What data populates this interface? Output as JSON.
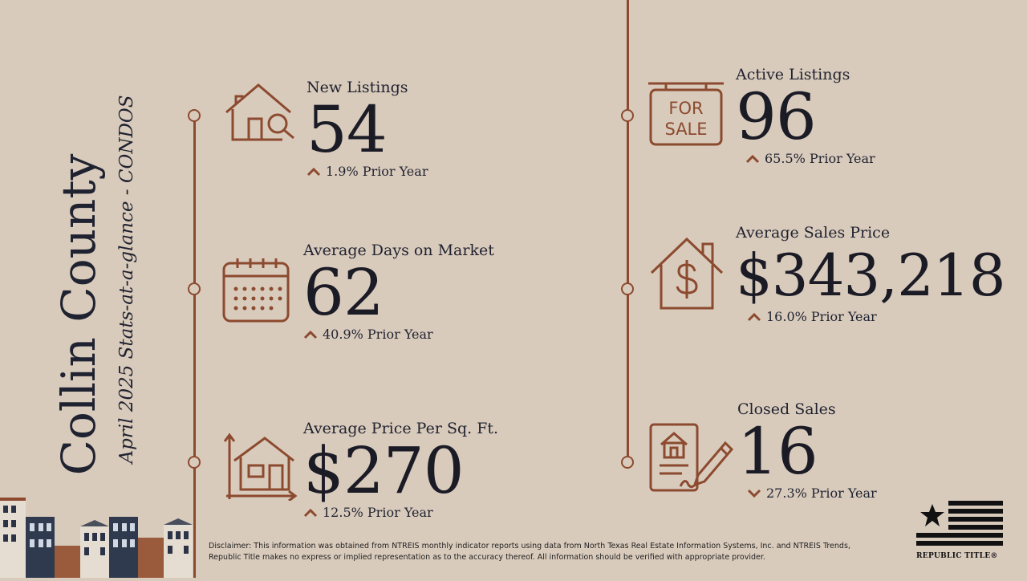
{
  "title": "Collin County",
  "subtitle": "April 2025 Stats-at-a-glance - CONDOS",
  "stats": [
    {
      "label": "New Listings",
      "value": "54",
      "direction": "up",
      "change": "1.9% Prior Year",
      "icon": "house-search-icon"
    },
    {
      "label": "Average Days on Market",
      "value": "62",
      "direction": "up",
      "change": "40.9% Prior Year",
      "icon": "calendar-icon"
    },
    {
      "label": "Average Price Per Sq. Ft.",
      "value": "$270",
      "direction": "up",
      "change": "12.5% Prior Year",
      "icon": "house-area-icon"
    },
    {
      "label": "Active Listings",
      "value": "96",
      "direction": "up",
      "change": "65.5% Prior Year",
      "icon": "for-sale-sign-icon"
    },
    {
      "label": "Average Sales Price",
      "value": "$343,218",
      "direction": "up",
      "change": "16.0% Prior Year",
      "icon": "house-dollar-icon"
    },
    {
      "label": "Closed Sales",
      "value": "16",
      "direction": "down",
      "change": "27.3% Prior Year",
      "icon": "signed-contract-icon"
    }
  ],
  "for_sale_sign": {
    "line1": "FOR",
    "line2": "SALE"
  },
  "disclaimer": "Disclaimer: This information was obtained from NTREIS monthly indicator reports using data from North Texas Real Estate Information Systems, Inc. and NTREIS Trends, Republic Title makes no express or implied representation as to the accuracy thereof. All information should be verified with appropriate provider.",
  "logo_text": "REPUBLIC TITLE®",
  "colors": {
    "background": "#d9cbbc",
    "accent": "#8c4a2f",
    "text": "#1b1b26"
  }
}
